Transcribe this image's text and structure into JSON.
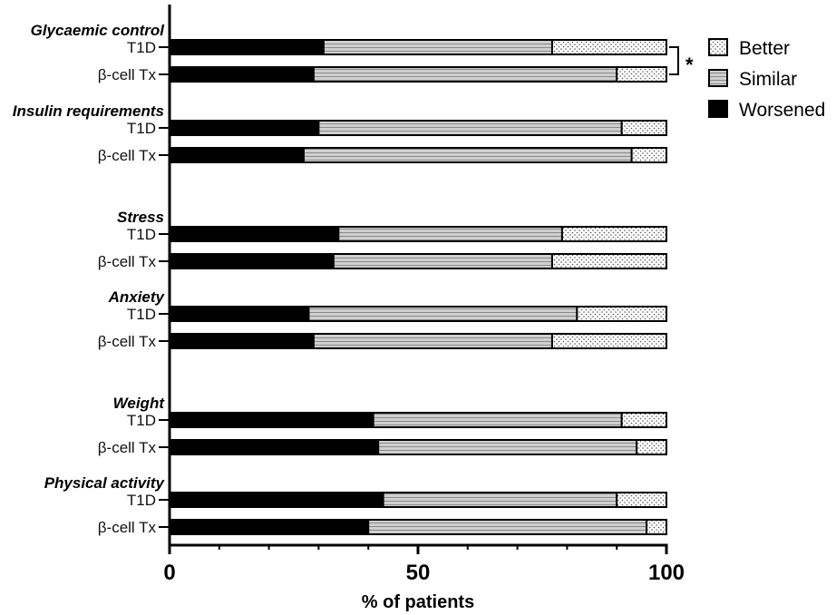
{
  "chart_data": {
    "type": "bar",
    "orientation": "horizontal",
    "stacked": true,
    "xlabel": "% of patients",
    "xlim": [
      0,
      100
    ],
    "xticks": [
      "0",
      "50",
      "100"
    ],
    "series": [
      {
        "name": "Worsened",
        "color": "#000000",
        "pattern": "solid"
      },
      {
        "name": "Similar",
        "color": "#cfcfcf",
        "pattern": "horizontal-lines"
      },
      {
        "name": "Better",
        "color": "#ffffff",
        "pattern": "dots"
      }
    ],
    "legend_order": [
      "Better",
      "Similar",
      "Worsened"
    ],
    "legend_position": "top-right",
    "groups": [
      {
        "label": "Glycaemic control",
        "bars": [
          {
            "label": "T1D",
            "values": [
              31,
              46,
              23
            ]
          },
          {
            "label": "β-cell Tx",
            "values": [
              29,
              61,
              10
            ]
          }
        ],
        "significance": "*"
      },
      {
        "label": "Insulin requirements",
        "bars": [
          {
            "label": "T1D",
            "values": [
              30,
              61,
              9
            ]
          },
          {
            "label": "β-cell Tx",
            "values": [
              27,
              66,
              7
            ]
          }
        ]
      },
      {
        "label": "Stress",
        "bars": [
          {
            "label": "T1D",
            "values": [
              34,
              45,
              21
            ]
          },
          {
            "label": "β-cell Tx",
            "values": [
              33,
              44,
              23
            ]
          }
        ]
      },
      {
        "label": "Anxiety",
        "bars": [
          {
            "label": "T1D",
            "values": [
              28,
              54,
              18
            ]
          },
          {
            "label": "β-cell Tx",
            "values": [
              29,
              48,
              23
            ]
          }
        ]
      },
      {
        "label": "Weight",
        "bars": [
          {
            "label": "T1D",
            "values": [
              41,
              50,
              9
            ]
          },
          {
            "label": "β-cell Tx",
            "values": [
              42,
              52,
              6
            ]
          }
        ]
      },
      {
        "label": "Physical activity",
        "bars": [
          {
            "label": "T1D",
            "values": [
              43,
              47,
              10
            ]
          },
          {
            "label": "β-cell Tx",
            "values": [
              40,
              56,
              4
            ]
          }
        ]
      }
    ]
  }
}
